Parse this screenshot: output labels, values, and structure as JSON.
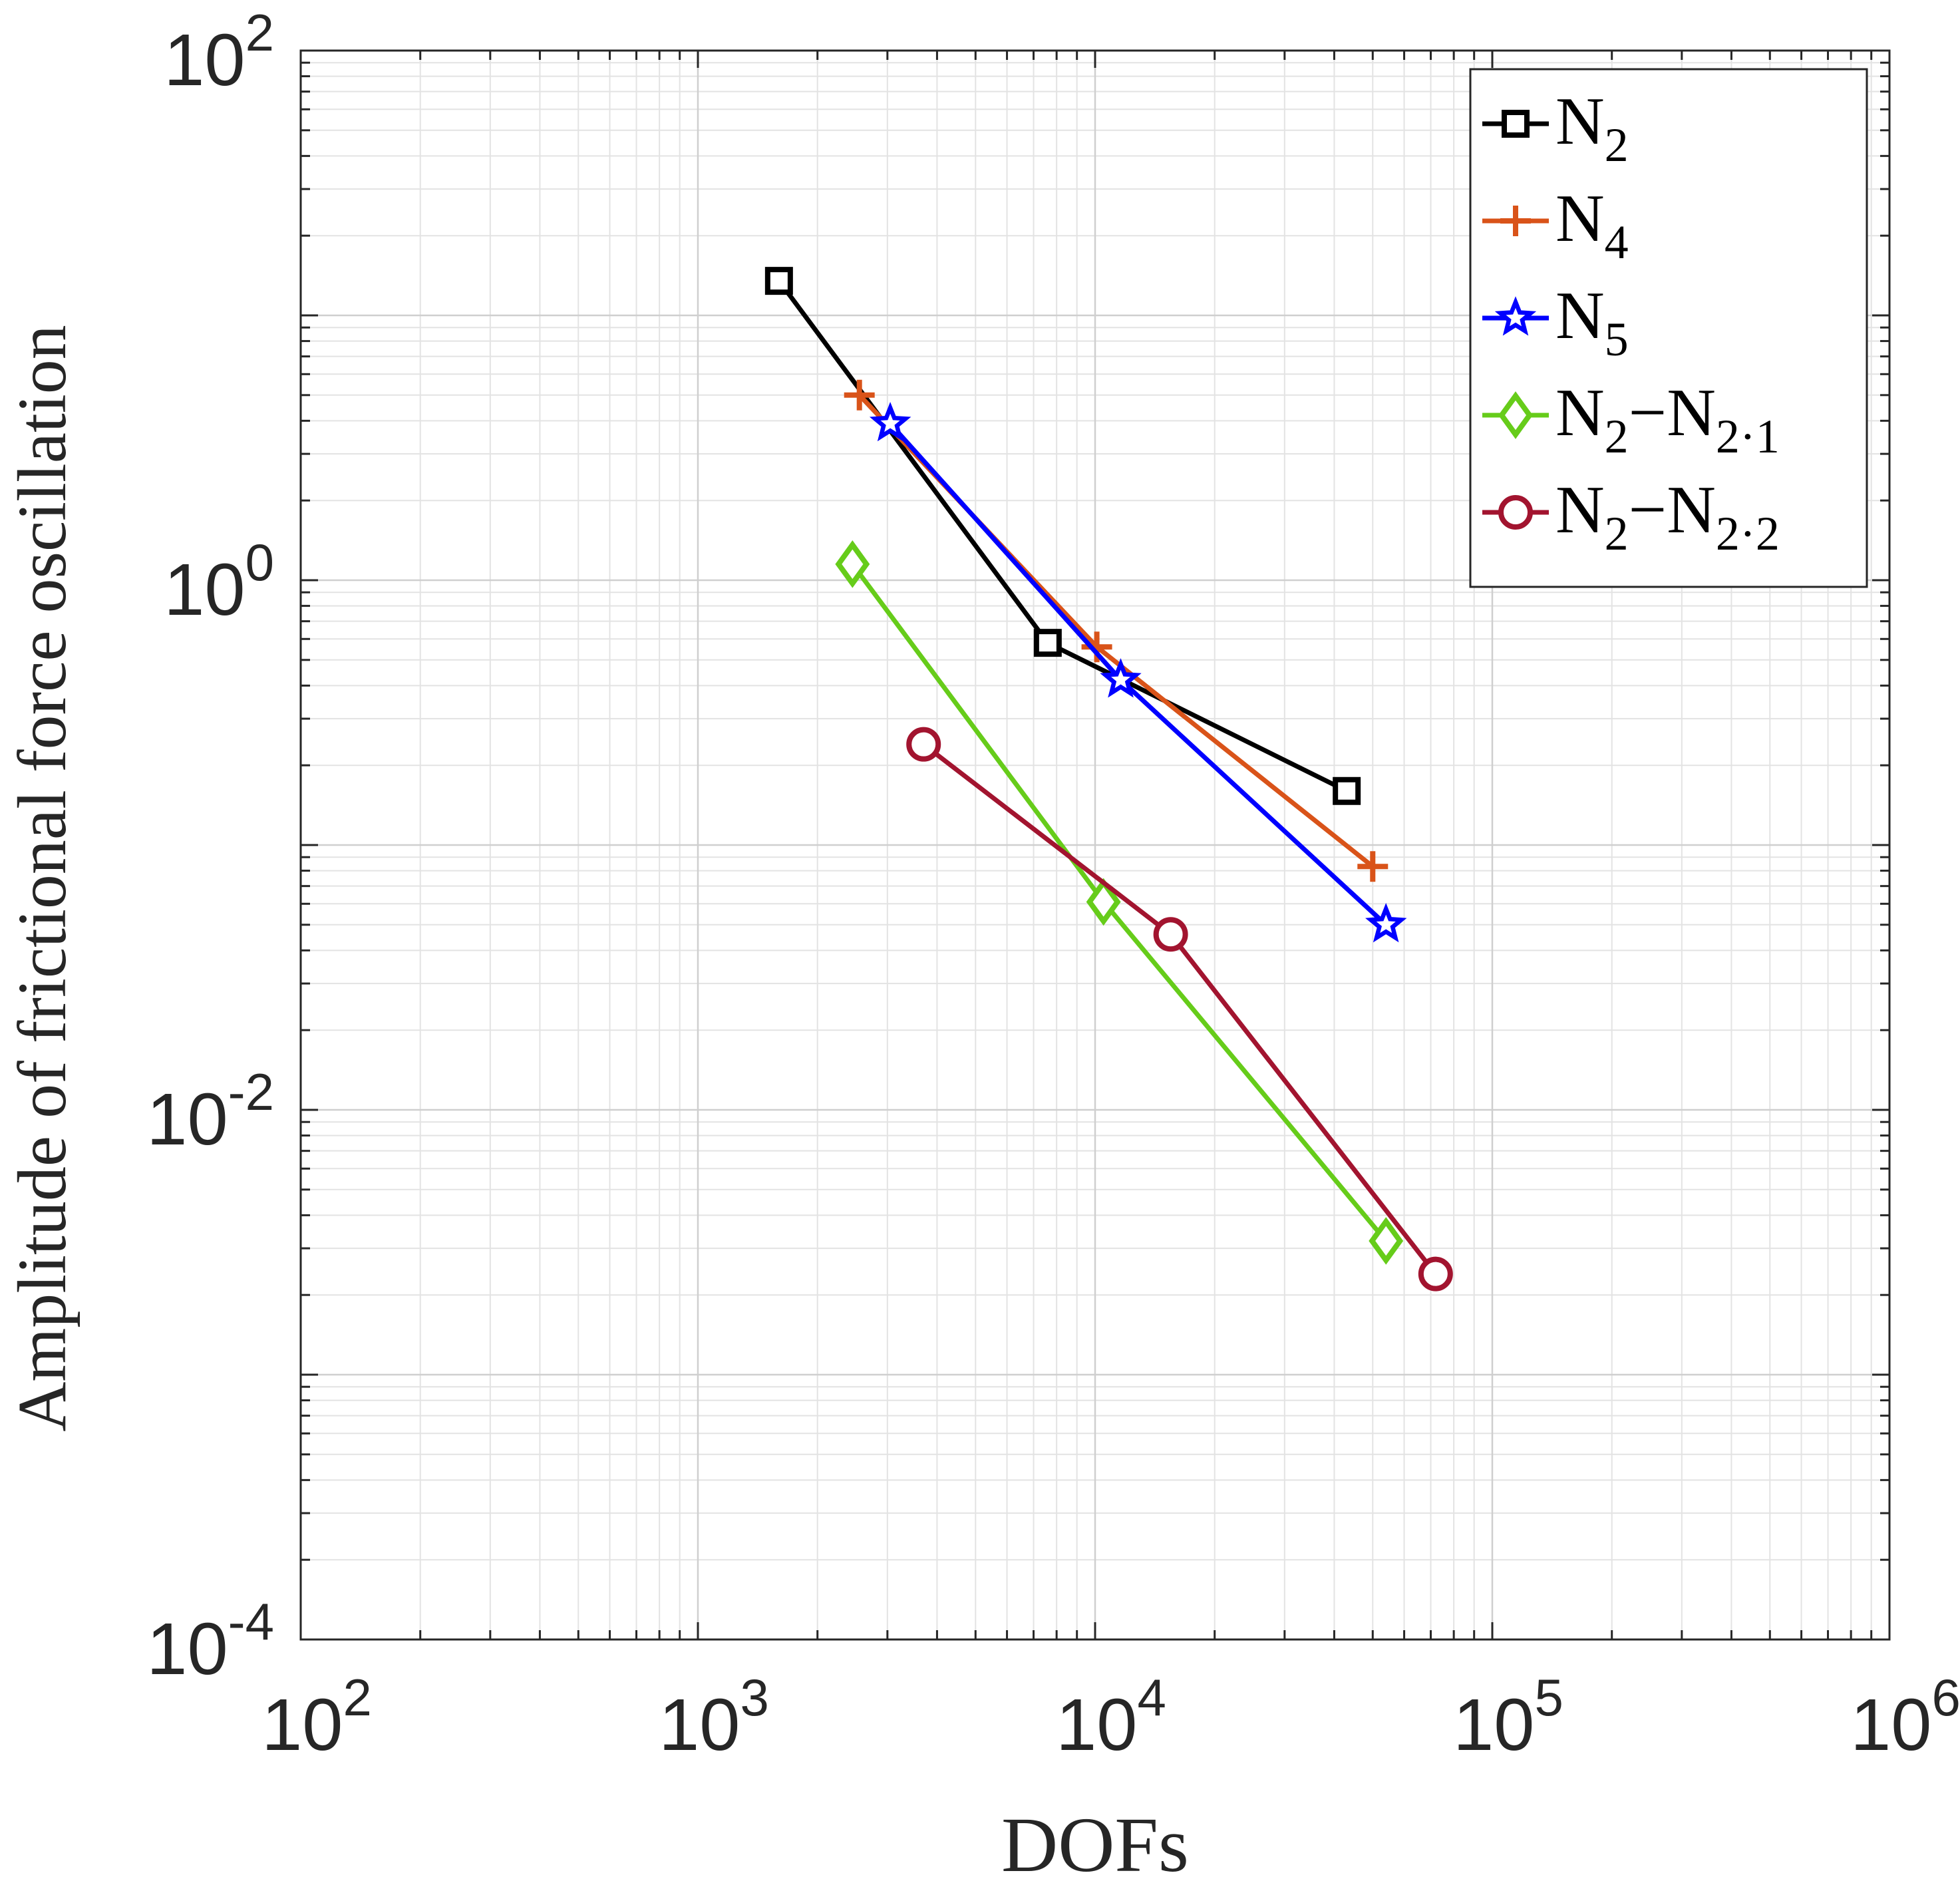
{
  "chart_data": {
    "type": "line",
    "xscale": "log",
    "yscale": "log",
    "xlabel": "DOFs",
    "ylabel": "Amplitude of frictional force oscillation",
    "xlim": [
      100,
      1000000
    ],
    "ylim": [
      0.0001,
      100
    ],
    "grid": true,
    "legend_position": "top-right",
    "x_ticks": [
      {
        "base": "10",
        "exp": "2"
      },
      {
        "base": "10",
        "exp": "3"
      },
      {
        "base": "10",
        "exp": "4"
      },
      {
        "base": "10",
        "exp": "5"
      },
      {
        "base": "10",
        "exp": "6"
      }
    ],
    "y_ticks": [
      {
        "base": "10",
        "exp": "2"
      },
      {
        "base": "10",
        "exp": "0"
      },
      {
        "base": "10",
        "exp": "-2"
      },
      {
        "base": "10",
        "exp": "-4"
      }
    ],
    "series": [
      {
        "name_main": "N",
        "name_sub": "2",
        "color": "#000000",
        "marker": "square",
        "x": [
          1600,
          7600,
          43000
        ],
        "y": [
          13.5,
          0.58,
          0.16
        ]
      },
      {
        "name_main": "N",
        "name_sub": "4",
        "color": "#D95319",
        "marker": "plus",
        "x": [
          2550,
          10100,
          50000
        ],
        "y": [
          5.0,
          0.56,
          0.083
        ]
      },
      {
        "name_main": "N",
        "name_sub": "5",
        "color": "#0000FF",
        "marker": "star",
        "x": [
          3050,
          11600,
          54000
        ],
        "y": [
          3.9,
          0.42,
          0.05
        ]
      },
      {
        "name_main": "N",
        "name_sub": "2",
        "name_suffix_main": "−N",
        "name_suffix_sub": "2·1",
        "color": "#66CC1A",
        "marker": "diamond",
        "x": [
          2450,
          10500,
          54000
        ],
        "y": [
          1.15,
          0.061,
          0.0032
        ]
      },
      {
        "name_main": "N",
        "name_sub": "2",
        "name_suffix_main": "−N",
        "name_suffix_sub": "2·2",
        "color": "#A2142F",
        "marker": "circle",
        "x": [
          3700,
          15500,
          72000
        ],
        "y": [
          0.24,
          0.046,
          0.0024
        ]
      }
    ]
  }
}
